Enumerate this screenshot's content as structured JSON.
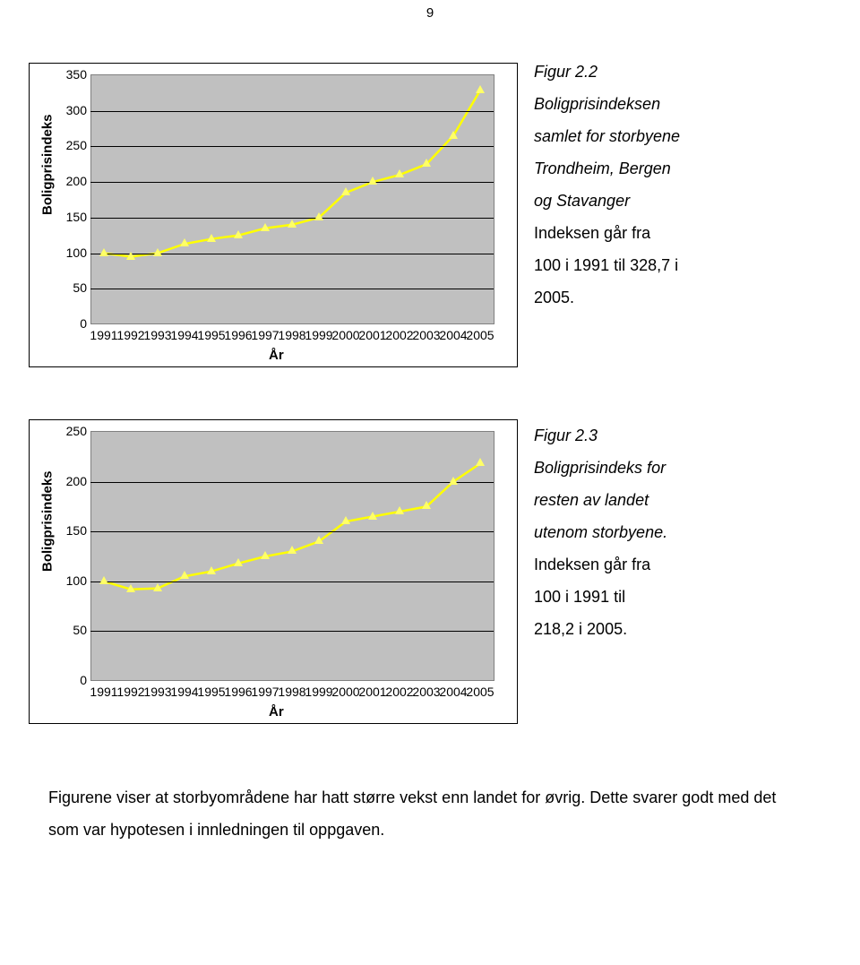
{
  "page_number": "9",
  "chart1": {
    "type": "line",
    "background_color": "#c0c0c0",
    "grid_color": "#000000",
    "line_color": "#ffff00",
    "marker_fill": "#ffff66",
    "marker_shape": "triangle",
    "ylabel": "Boligprisindeks",
    "xlabel": "År",
    "ylim": [
      0,
      350
    ],
    "ytick_step": 50,
    "yticks": [
      "0",
      "50",
      "100",
      "150",
      "200",
      "250",
      "300",
      "350"
    ],
    "categories": [
      "1991",
      "1992",
      "1993",
      "1994",
      "1995",
      "1996",
      "1997",
      "1998",
      "1999",
      "2000",
      "2001",
      "2002",
      "2003",
      "2004",
      "2005"
    ],
    "values": [
      100,
      95,
      100,
      113,
      120,
      125,
      135,
      140,
      150,
      185,
      200,
      210,
      225,
      265,
      328.7
    ],
    "label_fontsize": 15,
    "tick_fontsize": 14
  },
  "chart2": {
    "type": "line",
    "background_color": "#c0c0c0",
    "grid_color": "#000000",
    "line_color": "#ffff00",
    "marker_fill": "#ffff66",
    "marker_shape": "triangle",
    "ylabel": "Boligprisindeks",
    "xlabel": "År",
    "ylim": [
      0,
      250
    ],
    "ytick_step": 50,
    "yticks": [
      "0",
      "50",
      "100",
      "150",
      "200",
      "250"
    ],
    "categories": [
      "1991",
      "1992",
      "1993",
      "1994",
      "1995",
      "1996",
      "1997",
      "1998",
      "1999",
      "2000",
      "2001",
      "2002",
      "2003",
      "2004",
      "2005"
    ],
    "values": [
      100,
      92,
      93,
      105,
      110,
      118,
      125,
      130,
      140,
      160,
      165,
      170,
      175,
      200,
      218.2
    ],
    "label_fontsize": 15,
    "tick_fontsize": 14
  },
  "caption1": {
    "title": "Figur 2.2",
    "lines_italic": [
      "Boligprisindeksen",
      "samlet for storbyene",
      "Trondheim, Bergen",
      "og Stavanger"
    ],
    "lines_normal": [
      "Indeksen går fra",
      "100 i 1991 til 328,7 i",
      "2005."
    ]
  },
  "caption2": {
    "title": "Figur 2.3",
    "lines_italic": [
      "Boligprisindeks for",
      "resten av landet",
      "utenom storbyene."
    ],
    "lines_normal": [
      "Indeksen går fra",
      "100 i 1991 til",
      "218,2 i 2005."
    ]
  },
  "body_text": "Figurene viser at storbyområdene har hatt større vekst enn landet for øvrig. Dette svarer godt med det som var hypotesen i innledningen til oppgaven."
}
